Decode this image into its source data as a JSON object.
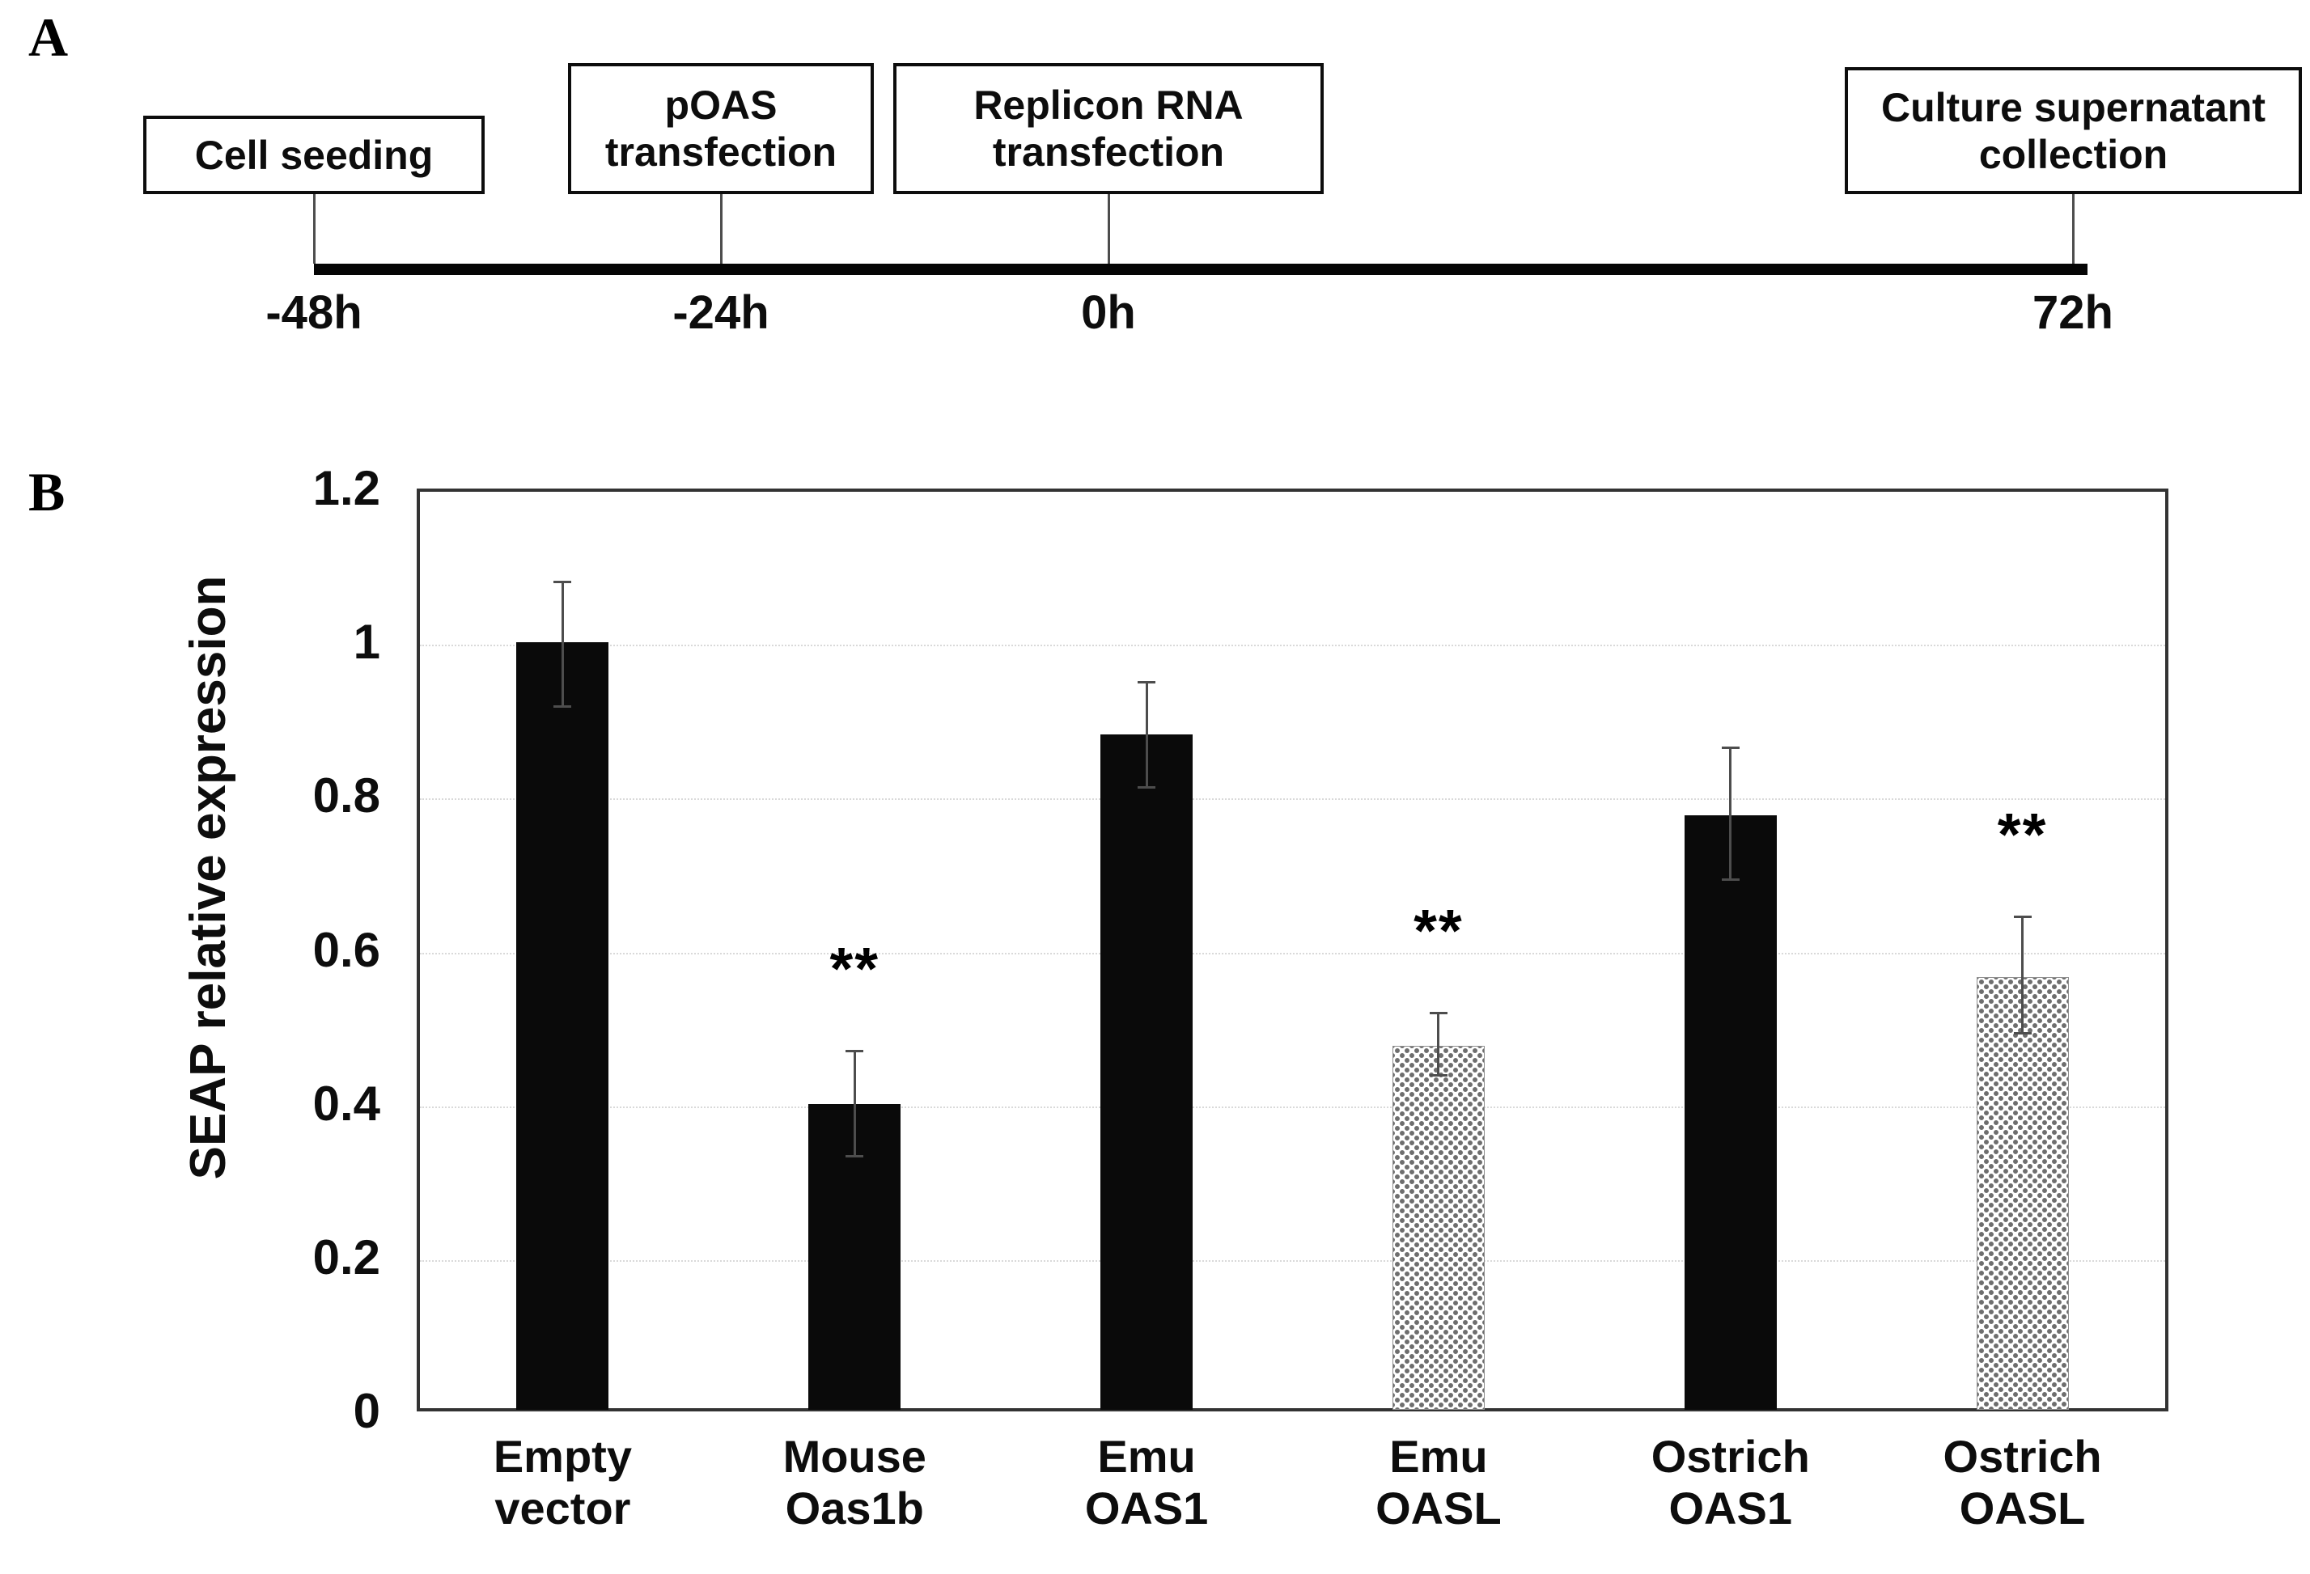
{
  "panel_a": {
    "label": "A",
    "events": [
      {
        "box_label": "Cell seeding",
        "time_label": "-48h"
      },
      {
        "box_label": "pOAS\ntransfection",
        "time_label": "-24h"
      },
      {
        "box_label": "Replicon RNA\ntransfection",
        "time_label": "0h"
      },
      {
        "box_label": "Culture supernatant\ncollection",
        "time_label": "72h"
      }
    ]
  },
  "panel_b": {
    "label": "B"
  },
  "chart_data": {
    "type": "bar",
    "title": "",
    "xlabel": "",
    "ylabel": "SEAP relative expression",
    "ylim": [
      0,
      1.2
    ],
    "yticks": [
      0,
      0.2,
      0.4,
      0.6,
      0.8,
      1,
      1.2
    ],
    "ytick_labels": [
      "0",
      "0.2",
      "0.4",
      "0.6",
      "0.8",
      "1",
      "1.2"
    ],
    "grid": true,
    "legend": "none",
    "categories": [
      "Empty\nvector",
      "Mouse\nOas1b",
      "Emu\nOAS1",
      "Emu\nOASL",
      "Ostrich\nOAS1",
      "Ostrich\nOASL"
    ],
    "values": [
      1.0,
      0.4,
      0.88,
      0.475,
      0.775,
      0.565
    ],
    "error_plus": [
      0.08,
      0.07,
      0.07,
      0.045,
      0.09,
      0.08
    ],
    "error_minus": [
      0.085,
      0.07,
      0.07,
      0.04,
      0.085,
      0.075
    ],
    "significance": [
      "",
      "**",
      "",
      "**",
      "",
      "**"
    ],
    "bar_styles": [
      "solid",
      "solid",
      "solid",
      "pattern",
      "solid",
      "pattern"
    ],
    "colors": {
      "bar_solid": "#0a0a0a",
      "bar_pattern_dot": "#6e6e6e",
      "error_bar": "#4d4d4d",
      "gridline": "#d9d9d9",
      "frame": "#333333"
    }
  }
}
